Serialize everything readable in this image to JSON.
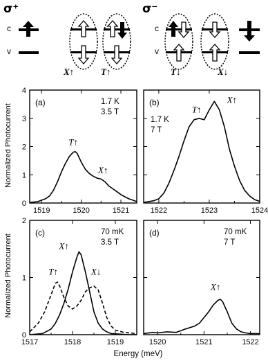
{
  "diagram": {
    "left": {
      "title": "σ⁺",
      "band_c": "c",
      "band_v": "v",
      "label_x": "X↑",
      "label_t": "T↑"
    },
    "right": {
      "title": "σ⁻",
      "band_c": "c",
      "band_v": "v",
      "label_t": "T↓",
      "label_x": "X↓"
    }
  },
  "shared_ylabel": "Normalized Photocurrent",
  "shared_xlabel": "Energy (meV)",
  "chart_data": [
    {
      "type": "line",
      "panel": "(a)",
      "conditions": [
        "1.7 K",
        "3.5 T"
      ],
      "xlim": [
        1518.7,
        1521.4
      ],
      "ylim": [
        0,
        4
      ],
      "xticks": [
        1519,
        1520,
        1521
      ],
      "yticks": [
        0,
        1,
        2,
        3,
        4
      ],
      "series": [
        {
          "style": "solid",
          "x": [
            1518.7,
            1518.9,
            1519.0,
            1519.1,
            1519.2,
            1519.3,
            1519.4,
            1519.5,
            1519.6,
            1519.7,
            1519.8,
            1519.85,
            1519.9,
            1520.0,
            1520.1,
            1520.2,
            1520.3,
            1520.4,
            1520.5,
            1520.6,
            1520.7,
            1520.8,
            1520.9,
            1521.0,
            1521.1,
            1521.2,
            1521.3,
            1521.4
          ],
          "y": [
            0.02,
            0.05,
            0.1,
            0.15,
            0.25,
            0.45,
            0.75,
            1.1,
            1.4,
            1.65,
            1.8,
            1.82,
            1.75,
            1.45,
            1.2,
            1.05,
            0.95,
            0.88,
            0.85,
            0.75,
            0.6,
            0.5,
            0.4,
            0.3,
            0.22,
            0.15,
            0.1,
            0.05
          ]
        }
      ],
      "annotations": [
        {
          "text": "T↑",
          "x": 1519.8,
          "y": 2.05
        },
        {
          "text": "X↑",
          "x": 1520.55,
          "y": 1.05
        }
      ]
    },
    {
      "type": "line",
      "panel": "(b)",
      "conditions": [
        "1.7 K",
        "7 T"
      ],
      "xlim": [
        1521.7,
        1524.0
      ],
      "ylim": [
        0,
        4
      ],
      "xticks": [
        1522,
        1523,
        1524
      ],
      "yticks": [
        0,
        1,
        2,
        3,
        4
      ],
      "series": [
        {
          "style": "solid",
          "x": [
            1521.7,
            1521.9,
            1522.0,
            1522.1,
            1522.2,
            1522.3,
            1522.4,
            1522.5,
            1522.6,
            1522.7,
            1522.8,
            1522.9,
            1523.0,
            1523.1,
            1523.2,
            1523.3,
            1523.4,
            1523.5,
            1523.6,
            1523.7,
            1523.8,
            1523.9,
            1524.0
          ],
          "y": [
            0.02,
            0.08,
            0.15,
            0.35,
            0.7,
            1.15,
            1.65,
            2.2,
            2.7,
            2.95,
            3.0,
            2.95,
            3.3,
            3.6,
            3.3,
            2.7,
            1.9,
            1.3,
            0.8,
            0.45,
            0.25,
            0.12,
            0.06
          ]
        }
      ],
      "annotations": [
        {
          "text": "T↑",
          "x": 1522.75,
          "y": 3.2
        },
        {
          "text": "X↑",
          "x": 1523.45,
          "y": 3.55
        }
      ]
    },
    {
      "type": "line",
      "panel": "(c)",
      "conditions": [
        "70 mK",
        "3.5 T"
      ],
      "xlim": [
        1517.0,
        1519.5
      ],
      "ylim": [
        0,
        2
      ],
      "xticks": [
        1517,
        1518,
        1519
      ],
      "yticks": [
        0,
        1,
        2
      ],
      "series": [
        {
          "style": "solid",
          "x": [
            1517.0,
            1517.3,
            1517.5,
            1517.6,
            1517.7,
            1517.8,
            1517.9,
            1518.0,
            1518.1,
            1518.15,
            1518.2,
            1518.3,
            1518.4,
            1518.5,
            1518.6,
            1518.7,
            1518.8,
            1518.9,
            1519.1,
            1519.3,
            1519.5
          ],
          "y": [
            0.0,
            0.02,
            0.1,
            0.2,
            0.35,
            0.55,
            0.8,
            1.1,
            1.35,
            1.45,
            1.4,
            1.1,
            0.75,
            0.4,
            0.2,
            0.1,
            0.05,
            0.02,
            0.01,
            0.0,
            0.0
          ]
        },
        {
          "style": "dashed",
          "x": [
            1517.0,
            1517.2,
            1517.35,
            1517.45,
            1517.55,
            1517.6,
            1517.65,
            1517.7,
            1517.8,
            1517.9,
            1518.0,
            1518.1,
            1518.2,
            1518.3,
            1518.4,
            1518.5,
            1518.6,
            1518.7,
            1518.8,
            1518.9,
            1519.0,
            1519.2,
            1519.5
          ],
          "y": [
            0.05,
            0.2,
            0.4,
            0.6,
            0.8,
            0.9,
            0.92,
            0.85,
            0.65,
            0.5,
            0.45,
            0.5,
            0.6,
            0.75,
            0.82,
            0.85,
            0.78,
            0.55,
            0.3,
            0.15,
            0.08,
            0.04,
            0.02
          ]
        }
      ],
      "annotations": [
        {
          "text": "T↑",
          "x": 1517.55,
          "y": 1.05
        },
        {
          "text": "X↑",
          "x": 1517.8,
          "y": 1.5
        },
        {
          "text": "X↓",
          "x": 1518.55,
          "y": 1.05
        }
      ]
    },
    {
      "type": "line",
      "panel": "(d)",
      "conditions": [
        "70 mK",
        "7 T"
      ],
      "xlim": [
        1519.7,
        1522.2
      ],
      "ylim": [
        0,
        2
      ],
      "xticks": [
        1520,
        1521,
        1522
      ],
      "yticks": [
        0,
        1,
        2
      ],
      "series": [
        {
          "style": "solid",
          "x": [
            1519.7,
            1519.9,
            1520.0,
            1520.2,
            1520.4,
            1520.6,
            1520.8,
            1520.9,
            1521.0,
            1521.1,
            1521.2,
            1521.3,
            1521.35,
            1521.4,
            1521.5,
            1521.6,
            1521.7,
            1521.8,
            1521.9,
            1522.0,
            1522.2
          ],
          "y": [
            0.02,
            0.04,
            0.03,
            0.05,
            0.04,
            0.1,
            0.15,
            0.2,
            0.3,
            0.4,
            0.52,
            0.6,
            0.62,
            0.58,
            0.4,
            0.2,
            0.1,
            0.05,
            0.03,
            0.02,
            0.02
          ]
        }
      ],
      "annotations": [
        {
          "text": "X↑",
          "x": 1521.25,
          "y": 0.78
        }
      ]
    }
  ]
}
